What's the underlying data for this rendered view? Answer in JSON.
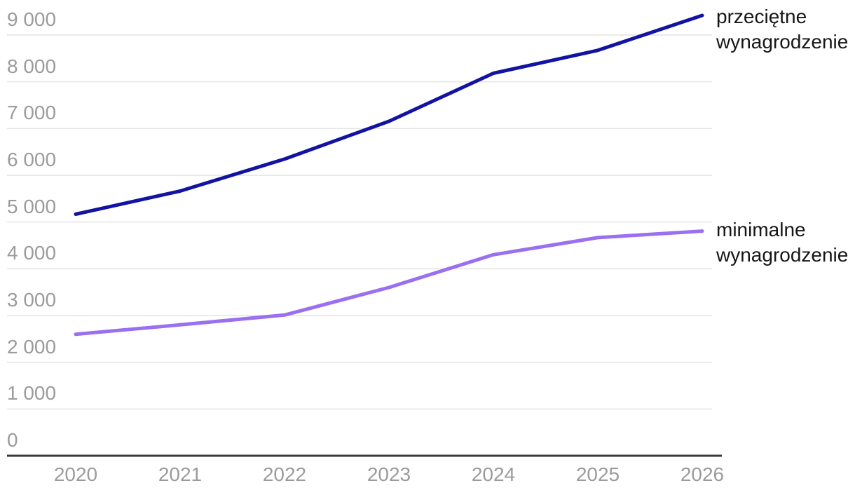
{
  "chart_data": {
    "type": "line",
    "title": "",
    "x": [
      2020,
      2021,
      2022,
      2023,
      2024,
      2025,
      2026
    ],
    "x_tick_labels": [
      "2020",
      "2021",
      "2022",
      "2023",
      "2024",
      "2025",
      "2026"
    ],
    "y_tick_labels": [
      "0",
      "1 000",
      "2 000",
      "3 000",
      "4 000",
      "5 000",
      "6 000",
      "7 000",
      "8 000",
      "9 000"
    ],
    "y_tick_values": [
      0,
      1000,
      2000,
      3000,
      4000,
      5000,
      6000,
      7000,
      8000,
      9000
    ],
    "ylim": [
      0,
      9000
    ],
    "grid": "horizontal",
    "legend_position": "direct-labels-right",
    "series": [
      {
        "name": "przeciętne wynagrodzenie",
        "color": "#1313a3",
        "values": [
          5167,
          5662,
          6346,
          7155,
          8182,
          8673,
          9420
        ]
      },
      {
        "name": "minimalne wynagrodzenie",
        "color": "#9a6ff0",
        "values": [
          2600,
          2800,
          3010,
          3600,
          4300,
          4666,
          4806
        ]
      }
    ]
  },
  "colors": {
    "background": "#ffffff",
    "axis_label": "#9b9b9b",
    "gridline": "#e4e4e4",
    "axis_line": "#3a3a3a",
    "series_label": "#161616"
  }
}
